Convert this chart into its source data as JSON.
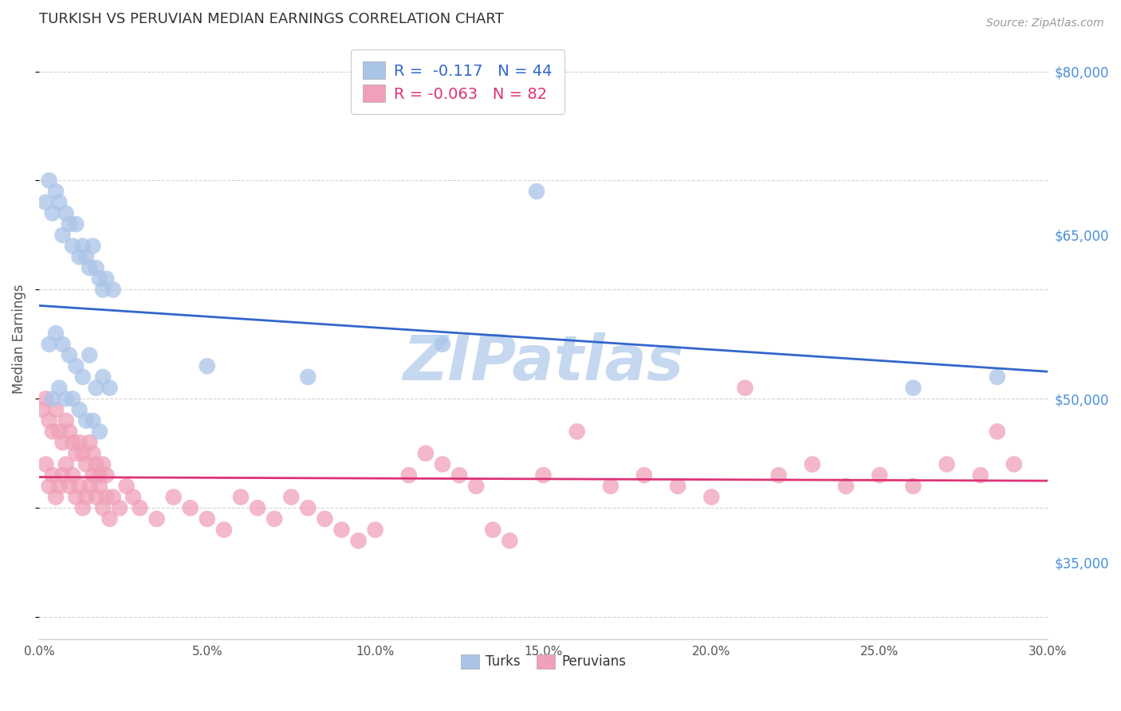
{
  "title": "TURKISH VS PERUVIAN MEDIAN EARNINGS CORRELATION CHART",
  "source": "Source: ZipAtlas.com",
  "ylabel": "Median Earnings",
  "xlim": [
    0.0,
    0.3
  ],
  "ylim": [
    28000,
    83000
  ],
  "xtick_labels": [
    "0.0%",
    "5.0%",
    "10.0%",
    "15.0%",
    "20.0%",
    "25.0%",
    "30.0%"
  ],
  "xtick_vals": [
    0.0,
    0.05,
    0.1,
    0.15,
    0.2,
    0.25,
    0.3
  ],
  "ytick_vals": [
    35000,
    50000,
    65000,
    80000
  ],
  "ytick_labels": [
    "$35,000",
    "$50,000",
    "$65,000",
    "$80,000"
  ],
  "watermark": "ZIPatlas",
  "legend_blue_r": "-0.117",
  "legend_blue_n": "44",
  "legend_pink_r": "-0.063",
  "legend_pink_n": "82",
  "background_color": "#ffffff",
  "grid_color": "#c8c8c8",
  "title_color": "#333333",
  "source_color": "#999999",
  "ytick_color": "#4a90d9",
  "blue_scatter_color": "#aac4e8",
  "blue_line_color": "#3366cc",
  "pink_scatter_color": "#f0a0b8",
  "pink_line_color": "#dd3377",
  "watermark_color": "#c5d8f0",
  "turks_x": [
    0.002,
    0.003,
    0.004,
    0.005,
    0.006,
    0.007,
    0.008,
    0.009,
    0.01,
    0.011,
    0.012,
    0.013,
    0.014,
    0.015,
    0.016,
    0.017,
    0.018,
    0.019,
    0.02,
    0.022,
    0.003,
    0.005,
    0.007,
    0.009,
    0.011,
    0.013,
    0.015,
    0.017,
    0.019,
    0.021,
    0.004,
    0.006,
    0.008,
    0.01,
    0.012,
    0.014,
    0.016,
    0.018,
    0.05,
    0.08,
    0.12,
    0.148,
    0.26,
    0.285
  ],
  "turks_y": [
    68000,
    70000,
    67000,
    69000,
    68000,
    65000,
    67000,
    66000,
    64000,
    66000,
    63000,
    64000,
    63000,
    62000,
    64000,
    62000,
    61000,
    60000,
    61000,
    60000,
    55000,
    56000,
    55000,
    54000,
    53000,
    52000,
    54000,
    51000,
    52000,
    51000,
    50000,
    51000,
    50000,
    50000,
    49000,
    48000,
    48000,
    47000,
    53000,
    52000,
    55000,
    69000,
    51000,
    52000
  ],
  "peruvians_x": [
    0.001,
    0.002,
    0.003,
    0.004,
    0.005,
    0.006,
    0.007,
    0.008,
    0.009,
    0.01,
    0.011,
    0.012,
    0.013,
    0.014,
    0.015,
    0.016,
    0.017,
    0.018,
    0.019,
    0.02,
    0.002,
    0.004,
    0.006,
    0.008,
    0.01,
    0.012,
    0.014,
    0.016,
    0.018,
    0.02,
    0.003,
    0.005,
    0.007,
    0.009,
    0.011,
    0.013,
    0.015,
    0.017,
    0.019,
    0.021,
    0.022,
    0.024,
    0.026,
    0.028,
    0.03,
    0.035,
    0.04,
    0.045,
    0.05,
    0.055,
    0.06,
    0.065,
    0.07,
    0.075,
    0.08,
    0.085,
    0.09,
    0.095,
    0.1,
    0.11,
    0.115,
    0.12,
    0.125,
    0.13,
    0.135,
    0.14,
    0.15,
    0.16,
    0.17,
    0.18,
    0.19,
    0.2,
    0.21,
    0.22,
    0.23,
    0.24,
    0.25,
    0.26,
    0.27,
    0.28,
    0.285,
    0.29
  ],
  "peruvians_y": [
    49000,
    50000,
    48000,
    47000,
    49000,
    47000,
    46000,
    48000,
    47000,
    46000,
    45000,
    46000,
    45000,
    44000,
    46000,
    45000,
    44000,
    43000,
    44000,
    43000,
    44000,
    43000,
    42000,
    44000,
    43000,
    42000,
    41000,
    43000,
    42000,
    41000,
    42000,
    41000,
    43000,
    42000,
    41000,
    40000,
    42000,
    41000,
    40000,
    39000,
    41000,
    40000,
    42000,
    41000,
    40000,
    39000,
    41000,
    40000,
    39000,
    38000,
    41000,
    40000,
    39000,
    41000,
    40000,
    39000,
    38000,
    37000,
    38000,
    43000,
    45000,
    44000,
    43000,
    42000,
    38000,
    37000,
    43000,
    47000,
    42000,
    43000,
    42000,
    41000,
    51000,
    43000,
    44000,
    42000,
    43000,
    42000,
    44000,
    43000,
    47000,
    44000
  ]
}
